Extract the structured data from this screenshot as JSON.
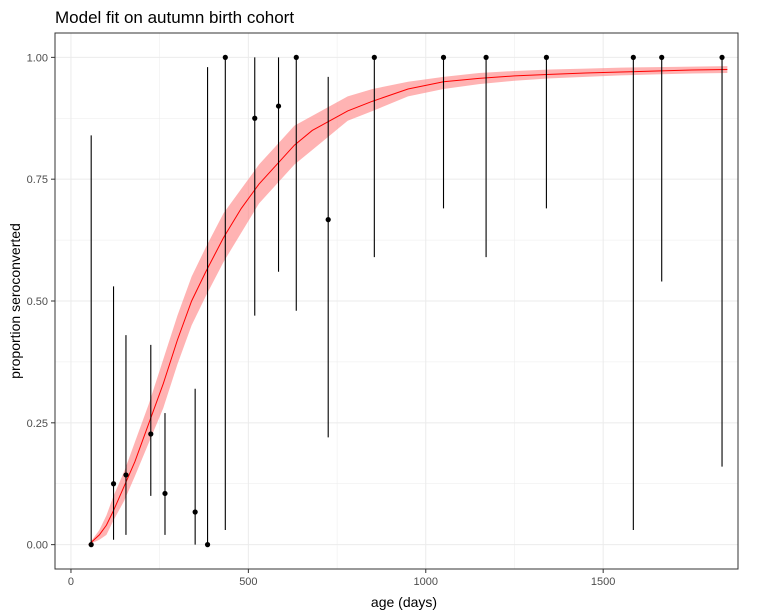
{
  "chart_data": {
    "type": "scatter",
    "title": "Model fit on autumn birth cohort",
    "xlabel": "age (days)",
    "ylabel": "proportion seroconverted",
    "xlim": [
      -45,
      1880
    ],
    "ylim": [
      -0.05,
      1.05
    ],
    "x_ticks": [
      0,
      500,
      1000,
      1500
    ],
    "x_tick_labels": [
      "0",
      "500",
      "1000",
      "1500"
    ],
    "y_ticks": [
      0,
      0.25,
      0.5,
      0.75,
      1
    ],
    "y_tick_labels": [
      "0.00",
      "0.25",
      "0.50",
      "0.75",
      "1.00"
    ],
    "grid": true,
    "legend": "none",
    "colors": {
      "fit_line": "#ff0000",
      "fit_band": "#ff8080",
      "points": "#000000",
      "grid": "#ebebeb",
      "panel_border": "#333333"
    },
    "fit": {
      "x": [
        50,
        80,
        100,
        120,
        150,
        180,
        220,
        260,
        300,
        340,
        380,
        430,
        480,
        530,
        580,
        630,
        680,
        730,
        780,
        850,
        950,
        1050,
        1150,
        1250,
        1350,
        1450,
        1550,
        1650,
        1750,
        1850
      ],
      "y": [
        0.0,
        0.02,
        0.04,
        0.07,
        0.12,
        0.17,
        0.25,
        0.33,
        0.42,
        0.5,
        0.56,
        0.63,
        0.69,
        0.74,
        0.78,
        0.82,
        0.85,
        0.87,
        0.89,
        0.91,
        0.935,
        0.95,
        0.957,
        0.962,
        0.965,
        0.968,
        0.97,
        0.972,
        0.974,
        0.975
      ],
      "lower": [
        0.0,
        0.01,
        0.02,
        0.05,
        0.09,
        0.14,
        0.21,
        0.28,
        0.37,
        0.45,
        0.51,
        0.58,
        0.64,
        0.7,
        0.74,
        0.78,
        0.81,
        0.84,
        0.87,
        0.89,
        0.92,
        0.935,
        0.945,
        0.952,
        0.957,
        0.96,
        0.963,
        0.965,
        0.967,
        0.968
      ],
      "upper": [
        0.0,
        0.03,
        0.06,
        0.1,
        0.15,
        0.21,
        0.29,
        0.38,
        0.47,
        0.55,
        0.61,
        0.68,
        0.73,
        0.78,
        0.82,
        0.86,
        0.88,
        0.9,
        0.92,
        0.935,
        0.95,
        0.96,
        0.968,
        0.972,
        0.975,
        0.977,
        0.979,
        0.98,
        0.981,
        0.982
      ]
    },
    "points": [
      {
        "x": 57,
        "y": 0.0,
        "lower": 0.0,
        "upper": 0.84
      },
      {
        "x": 120,
        "y": 0.125,
        "lower": 0.01,
        "upper": 0.53
      },
      {
        "x": 155,
        "y": 0.143,
        "lower": 0.02,
        "upper": 0.43
      },
      {
        "x": 225,
        "y": 0.227,
        "lower": 0.1,
        "upper": 0.41
      },
      {
        "x": 265,
        "y": 0.105,
        "lower": 0.02,
        "upper": 0.27
      },
      {
        "x": 350,
        "y": 0.067,
        "lower": 0.0,
        "upper": 0.32
      },
      {
        "x": 385,
        "y": 0.0,
        "lower": 0.0,
        "upper": 0.98
      },
      {
        "x": 435,
        "y": 1.0,
        "lower": 0.03,
        "upper": 1.0
      },
      {
        "x": 518,
        "y": 0.875,
        "lower": 0.47,
        "upper": 1.0
      },
      {
        "x": 585,
        "y": 0.9,
        "lower": 0.56,
        "upper": 1.0
      },
      {
        "x": 635,
        "y": 1.0,
        "lower": 0.48,
        "upper": 1.0
      },
      {
        "x": 725,
        "y": 0.667,
        "lower": 0.22,
        "upper": 0.96
      },
      {
        "x": 855,
        "y": 1.0,
        "lower": 0.59,
        "upper": 1.0
      },
      {
        "x": 1050,
        "y": 1.0,
        "lower": 0.69,
        "upper": 1.0
      },
      {
        "x": 1170,
        "y": 1.0,
        "lower": 0.59,
        "upper": 1.0
      },
      {
        "x": 1340,
        "y": 1.0,
        "lower": 0.69,
        "upper": 1.0
      },
      {
        "x": 1585,
        "y": 1.0,
        "lower": 0.03,
        "upper": 1.0
      },
      {
        "x": 1665,
        "y": 1.0,
        "lower": 0.54,
        "upper": 1.0
      },
      {
        "x": 1835,
        "y": 1.0,
        "lower": 0.16,
        "upper": 1.0
      }
    ]
  }
}
